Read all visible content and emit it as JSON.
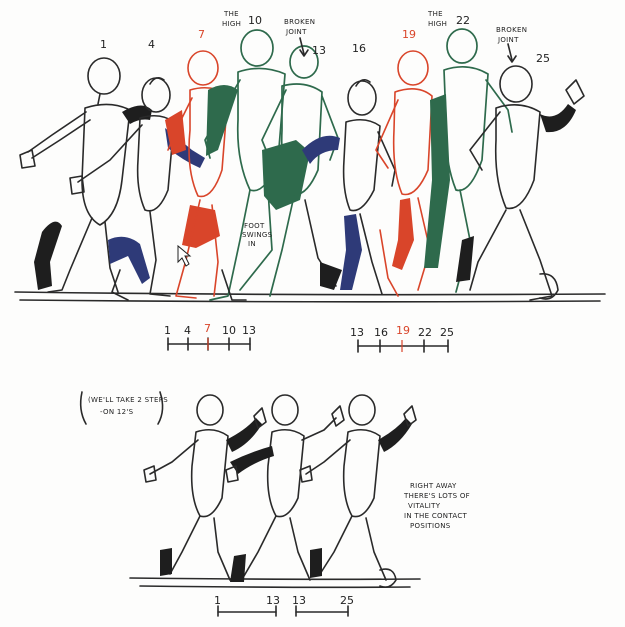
{
  "top": {
    "frames": [
      "1",
      "4",
      "7",
      "10",
      "13",
      "16",
      "19",
      "22",
      "25"
    ],
    "notes": {
      "the_high_1": [
        "THE",
        "HIGH"
      ],
      "broken_joint_1": [
        "BROKEN",
        "JOINT"
      ],
      "the_high_2": [
        "THE",
        "HIGH"
      ],
      "broken_joint_2": [
        "BROKEN",
        "JOINT"
      ],
      "foot_swings_in": [
        "FOOT",
        "SWINGS",
        "IN"
      ]
    },
    "timing_left": [
      "1",
      "4",
      "7",
      "10",
      "13"
    ],
    "timing_right": [
      "13",
      "16",
      "19",
      "22",
      "25"
    ]
  },
  "bottom": {
    "note_left": [
      "(WE'LL TAKE 2 STEPS",
      "-ON 12'S"
    ],
    "note_right": [
      "RIGHT AWAY",
      "THERE'S LOTS OF",
      "VITALITY",
      "IN THE CONTACT",
      "POSITIONS"
    ],
    "timing": [
      "1",
      "13",
      "13",
      "25"
    ]
  },
  "colors": {
    "ink": "#2a2a2a",
    "red": "#d9452a",
    "green": "#2e6a4c",
    "navy": "#2e3a78"
  }
}
